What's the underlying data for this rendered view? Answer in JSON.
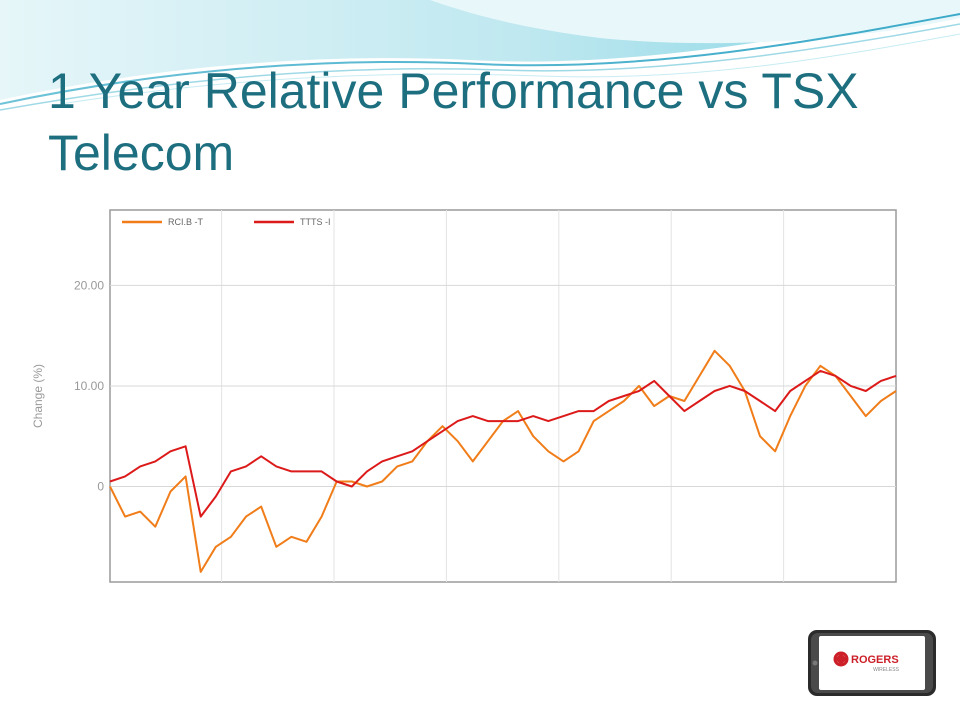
{
  "slide": {
    "title": "1 Year Relative Performance vs TSX Telecom"
  },
  "logo": {
    "text": "ROGERS",
    "subtext": "WIRELESS",
    "brand_color": "#cc1f28"
  },
  "chart_data": {
    "type": "line",
    "ylabel": "Change (%)",
    "xlabel": "",
    "ylim": [
      -9.5,
      27.5
    ],
    "yticks": [
      0,
      10,
      20
    ],
    "ytick_labels": [
      "0",
      "10.00",
      "20.00"
    ],
    "grid": true,
    "legend_position": "top-left",
    "x": [
      0,
      5,
      10,
      15,
      20,
      25,
      30,
      35,
      40,
      45,
      50,
      55,
      60,
      65,
      70,
      75,
      80,
      85,
      90,
      95,
      100,
      105,
      110,
      115,
      120,
      125,
      130,
      135,
      140,
      145,
      150,
      155,
      160,
      165,
      170,
      175,
      180,
      185,
      190,
      195,
      200,
      205,
      210,
      215,
      220,
      225,
      230,
      235,
      240,
      245,
      250,
      255,
      260
    ],
    "series": [
      {
        "name": "RCI.B -T",
        "color": "#f07d19",
        "values": [
          0,
          -3,
          -2.5,
          -4,
          -0.5,
          1,
          -8.5,
          -6,
          -5,
          -3,
          -2,
          -6,
          -5,
          -5.5,
          -3,
          0.5,
          0.5,
          0,
          0.5,
          2,
          2.5,
          4.5,
          6,
          4.5,
          2.5,
          4.5,
          6.5,
          7.5,
          5,
          3.5,
          2.5,
          3.5,
          6.5,
          7.5,
          8.5,
          10,
          8,
          9,
          8.5,
          11,
          13.5,
          12,
          9.5,
          5,
          3.5,
          7,
          10,
          12,
          11,
          9,
          7,
          8.5,
          9.5
        ]
      },
      {
        "name": "TTTS -I",
        "color": "#dc1a1a",
        "values": [
          0.5,
          1,
          2,
          2.5,
          3.5,
          4,
          -3,
          -1,
          1.5,
          2,
          3,
          2,
          1.5,
          1.5,
          1.5,
          0.5,
          0,
          1.5,
          2.5,
          3,
          3.5,
          4.5,
          5.5,
          6.5,
          7,
          6.5,
          6.5,
          6.5,
          7,
          6.5,
          7,
          7.5,
          7.5,
          8.5,
          9,
          9.5,
          10.5,
          9,
          7.5,
          8.5,
          9.5,
          10,
          9.5,
          8.5,
          7.5,
          9.5,
          10.5,
          11.5,
          11,
          10,
          9.5,
          10.5,
          11
        ]
      }
    ]
  }
}
